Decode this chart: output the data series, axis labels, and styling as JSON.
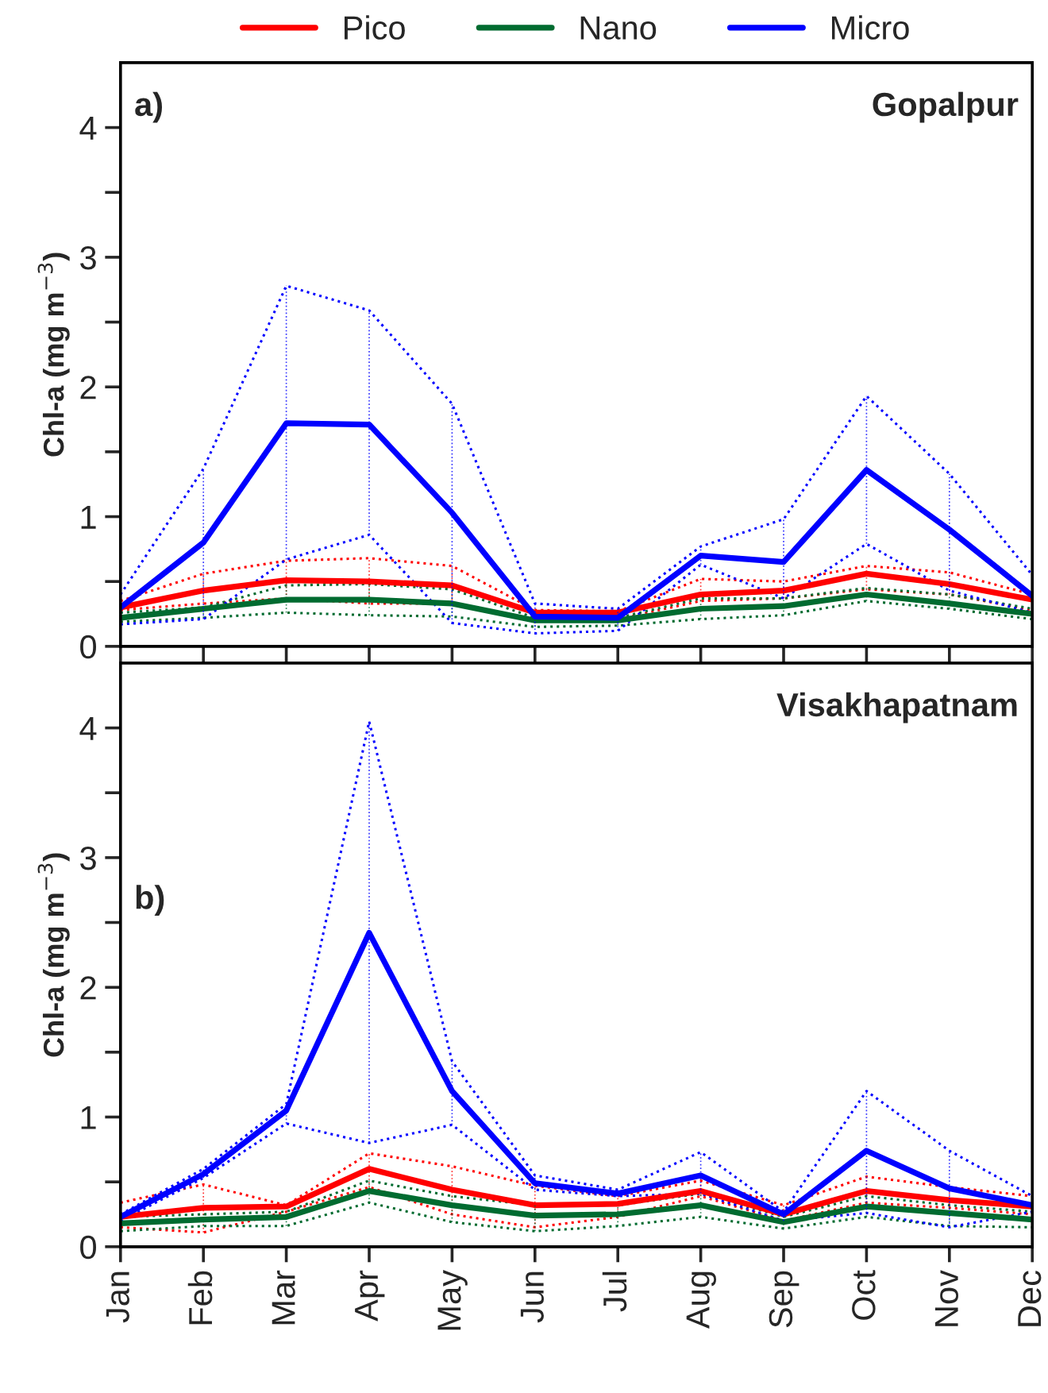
{
  "chart_data": [
    {
      "type": "line",
      "ylabel": "Chl-a (mg m$^{−3}$)",
      "annotations": [
        "a)",
        "Gopalpur"
      ],
      "legend": "top",
      "tick_labels": "y",
      "grid": false,
      "categories": [
        null,
        null,
        null,
        null,
        null,
        null,
        null,
        null,
        null,
        null,
        null,
        null
      ],
      "ylim": [
        0,
        4.5
      ],
      "yticks": [
        0,
        {
          "value": 0.5,
          "label": null
        },
        1,
        {
          "value": 1.5,
          "label": null
        },
        2,
        {
          "value": 2.5,
          "label": null
        },
        3,
        {
          "value": 3.5,
          "label": null
        },
        4
      ],
      "series": [
        {
          "name": "Pico",
          "color": "#ff0000",
          "values": [
            0.3,
            0.43,
            0.51,
            0.5,
            0.47,
            0.26,
            0.26,
            0.4,
            0.43,
            0.56,
            0.48,
            0.36
          ],
          "errors": [
            [
              0.28,
              0.35
            ],
            [
              0.33,
              0.56
            ],
            [
              0.37,
              0.66
            ],
            [
              0.33,
              0.68
            ],
            [
              0.33,
              0.62
            ],
            [
              0.21,
              0.28
            ],
            null,
            [
              0.35,
              0.52
            ],
            [
              0.37,
              0.5
            ],
            [
              0.44,
              0.62
            ],
            [
              0.4,
              0.57
            ],
            [
              0.28,
              0.4
            ]
          ]
        },
        {
          "name": "Nano",
          "color": "#006b30",
          "values": [
            0.22,
            0.29,
            0.36,
            0.36,
            0.33,
            0.2,
            0.2,
            0.29,
            0.31,
            0.4,
            0.33,
            0.25
          ],
          "errors": [
            [
              0.19,
              0.26
            ],
            [
              0.22,
              0.3
            ],
            [
              0.26,
              0.47
            ],
            [
              0.24,
              0.48
            ],
            [
              0.23,
              0.44
            ],
            [
              0.15,
              0.22
            ],
            [
              0.16,
              0.22
            ],
            [
              0.21,
              0.37
            ],
            [
              0.24,
              0.37
            ],
            [
              0.35,
              0.45
            ],
            [
              0.29,
              0.4
            ],
            [
              0.21,
              0.29
            ]
          ]
        },
        {
          "name": "Micro",
          "color": "#0000ff",
          "values": [
            0.3,
            0.8,
            1.72,
            1.71,
            1.03,
            0.23,
            0.22,
            0.7,
            0.65,
            1.36,
            0.9,
            0.39
          ],
          "errors": [
            [
              0.17,
              0.4
            ],
            [
              0.21,
              1.37
            ],
            [
              0.67,
              2.78
            ],
            [
              0.86,
              2.59
            ],
            [
              0.18,
              1.87
            ],
            [
              0.1,
              0.33
            ],
            [
              0.12,
              0.29
            ],
            [
              0.63,
              0.77
            ],
            [
              0.37,
              0.98
            ],
            [
              0.79,
              1.93
            ],
            [
              0.43,
              1.33
            ],
            [
              0.26,
              0.55
            ]
          ]
        },
        {
          "color": "#ff0000",
          "line_style": "dotted",
          "values": [
            0.35,
            0.56,
            0.66,
            0.68,
            0.62,
            0.28,
            0.27,
            0.52,
            0.5,
            0.62,
            0.57,
            0.4
          ]
        },
        {
          "color": "#ff0000",
          "line_style": "dotted",
          "values": [
            0.28,
            0.33,
            0.37,
            0.33,
            0.33,
            0.21,
            0.21,
            0.35,
            0.37,
            0.44,
            0.4,
            0.28
          ]
        },
        {
          "color": "#006b30",
          "line_style": "dotted",
          "values": [
            0.26,
            0.3,
            0.47,
            0.48,
            0.44,
            0.22,
            0.22,
            0.37,
            0.37,
            0.45,
            0.4,
            0.29
          ]
        },
        {
          "color": "#006b30",
          "line_style": "dotted",
          "values": [
            0.19,
            0.22,
            0.26,
            0.24,
            0.23,
            0.15,
            0.16,
            0.21,
            0.24,
            0.35,
            0.29,
            0.21
          ]
        },
        {
          "color": "#0000ff",
          "line_style": "dotted",
          "values": [
            0.4,
            1.37,
            2.78,
            2.59,
            1.87,
            0.33,
            0.29,
            0.77,
            0.98,
            1.93,
            1.33,
            0.55
          ]
        },
        {
          "color": "#0000ff",
          "line_style": "dotted",
          "values": [
            0.17,
            0.21,
            0.67,
            0.86,
            0.18,
            0.1,
            0.12,
            0.63,
            0.37,
            0.79,
            0.43,
            0.26
          ]
        }
      ]
    },
    {
      "type": "line",
      "ylabel": "Chl-a (mg m$^{−3}$)",
      "annotations": [
        "b)",
        "Visakhapatnam"
      ],
      "grid": false,
      "categories": [
        "Jan",
        "Feb",
        "Mar",
        "Apr",
        "May",
        "Jun",
        "Jul",
        "Aug",
        "Sep",
        "Oct",
        "Nov",
        "Dec"
      ],
      "ylim": [
        0,
        4.5
      ],
      "yticks": [
        0,
        {
          "value": 0.5,
          "label": null
        },
        1,
        {
          "value": 1.5,
          "label": null
        },
        2,
        {
          "value": 2.5,
          "label": null
        },
        3,
        {
          "value": 3.5,
          "label": null
        },
        4
      ],
      "series": [
        {
          "color": "#ff0000",
          "values": [
            0.23,
            0.3,
            0.31,
            0.6,
            0.44,
            0.32,
            0.33,
            0.43,
            0.25,
            0.43,
            0.36,
            0.31
          ],
          "errors": [
            [
              0.15,
              0.34
            ],
            [
              0.11,
              0.48
            ],
            [
              0.27,
              0.32
            ],
            [
              0.46,
              0.72
            ],
            [
              0.25,
              0.62
            ],
            [
              0.15,
              0.47
            ],
            [
              0.23,
              0.39
            ],
            [
              0.39,
              0.51
            ],
            [
              0.2,
              0.32
            ],
            [
              0.34,
              0.54
            ],
            [
              0.3,
              0.46
            ],
            null
          ]
        },
        {
          "color": "#006b30",
          "values": [
            0.18,
            0.21,
            0.23,
            0.43,
            0.32,
            0.24,
            0.25,
            0.32,
            0.19,
            0.31,
            0.26,
            0.21
          ],
          "errors": [
            [
              0.12,
              0.23
            ],
            [
              0.16,
              0.25
            ],
            [
              0.16,
              0.27
            ],
            [
              0.34,
              0.51
            ],
            [
              0.19,
              0.39
            ],
            [
              0.12,
              0.32
            ],
            [
              0.16,
              0.32
            ],
            [
              0.23,
              0.41
            ],
            [
              0.14,
              0.23
            ],
            [
              0.23,
              0.39
            ],
            [
              0.16,
              0.32
            ],
            null
          ]
        },
        {
          "color": "#0000ff",
          "values": [
            0.23,
            0.56,
            1.05,
            2.42,
            1.2,
            0.49,
            0.41,
            0.55,
            0.25,
            0.74,
            0.45,
            0.32
          ],
          "errors": [
            [
              0.2,
              0.25
            ],
            [
              0.53,
              0.6
            ],
            [
              0.95,
              1.1
            ],
            [
              0.8,
              4.05
            ],
            [
              0.94,
              1.43
            ],
            [
              0.44,
              0.55
            ],
            [
              0.39,
              0.44
            ],
            [
              0.41,
              0.73
            ],
            [
              0.2,
              0.27
            ],
            [
              0.26,
              1.2
            ],
            [
              0.15,
              0.74
            ],
            [
              0.27,
              0.39
            ]
          ]
        },
        {
          "color": "#ff0000",
          "line_style": "dotted",
          "values": [
            0.34,
            0.48,
            0.32,
            0.72,
            0.62,
            0.47,
            0.39,
            0.51,
            0.32,
            0.54,
            0.46,
            0.39
          ]
        },
        {
          "color": "#ff0000",
          "line_style": "dotted",
          "values": [
            0.15,
            0.11,
            0.27,
            0.46,
            0.25,
            0.15,
            0.23,
            0.39,
            0.2,
            0.34,
            0.3,
            0.25
          ]
        },
        {
          "color": "#006b30",
          "line_style": "dotted",
          "values": [
            0.23,
            0.25,
            0.27,
            0.51,
            0.39,
            0.32,
            0.32,
            0.41,
            0.23,
            0.39,
            0.32,
            0.27
          ]
        },
        {
          "color": "#006b30",
          "line_style": "dotted",
          "values": [
            0.12,
            0.16,
            0.16,
            0.34,
            0.19,
            0.12,
            0.16,
            0.23,
            0.14,
            0.23,
            0.16,
            0.15
          ]
        },
        {
          "color": "#0000ff",
          "line_style": "dotted",
          "values": [
            0.25,
            0.6,
            1.1,
            4.05,
            1.43,
            0.55,
            0.44,
            0.73,
            0.27,
            1.2,
            0.74,
            0.39
          ]
        },
        {
          "color": "#0000ff",
          "line_style": "dotted",
          "values": [
            0.2,
            0.53,
            0.95,
            0.8,
            0.94,
            0.44,
            0.39,
            0.41,
            0.2,
            0.26,
            0.15,
            0.27
          ]
        }
      ]
    }
  ]
}
